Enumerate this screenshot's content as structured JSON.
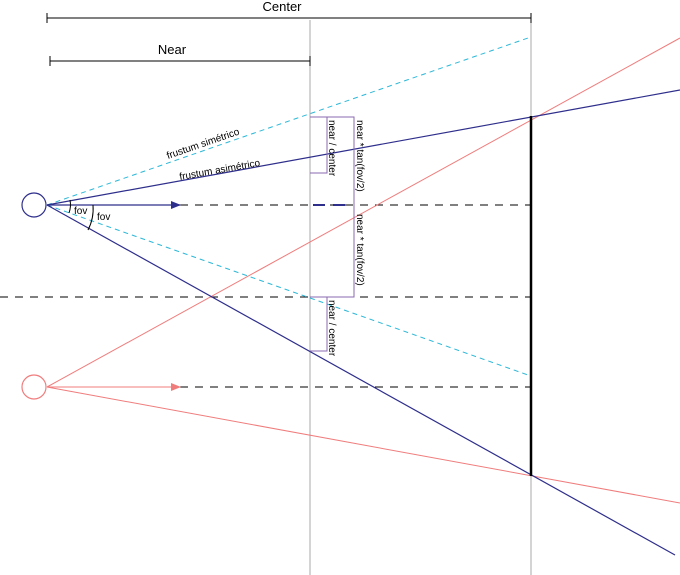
{
  "labels": {
    "center": "Center",
    "near": "Near",
    "frustum_symmetric": "frustum simétrico",
    "frustum_asymmetric": "frustum asimétrico",
    "fov_upper": "fov",
    "fov_lower": "fov",
    "near_center_upper": "near / center",
    "near_center_lower": "near / center",
    "tan_upper": "near * tan(fov/2)",
    "tan_lower": "near * tan(fov/2)"
  },
  "colors": {
    "navy": "#2e2e8c",
    "salmon": "#f07c7c",
    "cyan": "#2cb8d8",
    "purple": "#8a6ab0",
    "gray": "#a8a8a8",
    "black": "#000000"
  }
}
